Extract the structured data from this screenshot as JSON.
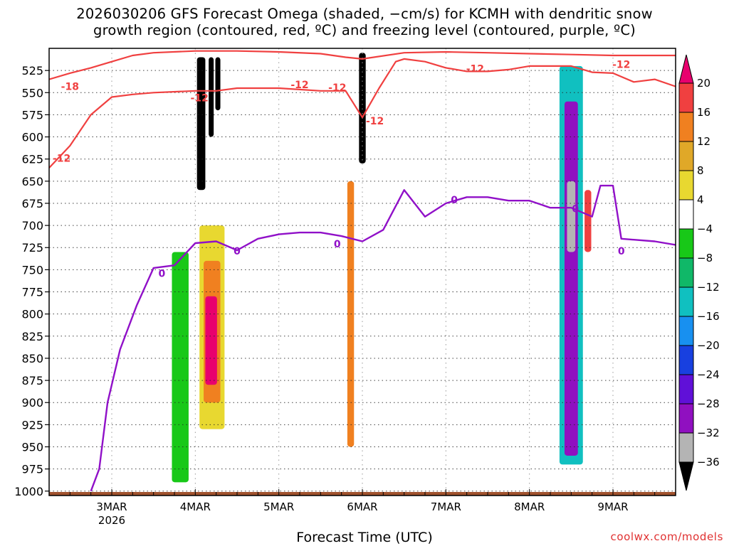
{
  "title_line1": "2026030206 GFS Forecast Omega (shaded, −cm/s) for KCMH with dendritic snow",
  "title_line2": "growth region (contoured, red, ºC) and freezing level (contoured, purple, ºC)",
  "credit": "coolwx.com/models",
  "colors": {
    "omega_pos_20": "#e8006e",
    "omega_16_20": "#f04040",
    "omega_12_16": "#f08020",
    "omega_8_12": "#e0a828",
    "omega_4_8": "#e8d830",
    "omega_neutral": "#ffffff",
    "omega_m8_m4": "#18c818",
    "omega_m12_m8": "#10b868",
    "omega_m16_m12": "#10c0c0",
    "omega_m20_m16": "#1890f0",
    "omega_m24_m20": "#1840e0",
    "omega_m28_m24": "#6010d8",
    "omega_m32_m28": "#9010c0",
    "omega_m36_m32": "#b4b4b4",
    "omega_below_m36": "#000000",
    "dgz_contour": "#f04040",
    "freezing_contour": "#9010c8",
    "terrain": "#a0522d"
  },
  "chart_data": {
    "type": "heatmap",
    "xlabel": "Forecast Time (UTC)",
    "ylabel": "",
    "x_ticks": [
      "3MAR",
      "4MAR",
      "5MAR",
      "6MAR",
      "7MAR",
      "8MAR",
      "9MAR"
    ],
    "x_tick_year": "2026",
    "x_range_days": [
      2.25,
      9.75
    ],
    "y_axis": "pressure (hPa), inverted",
    "y_ticks": [
      525,
      550,
      575,
      600,
      625,
      650,
      675,
      700,
      725,
      750,
      775,
      800,
      825,
      850,
      875,
      900,
      925,
      950,
      975,
      1000
    ],
    "y_range": [
      500,
      1005
    ],
    "grid": true,
    "colorbar": {
      "levels": [
        20,
        16,
        12,
        8,
        4,
        -4,
        -8,
        -12,
        -16,
        -20,
        -24,
        -28,
        -32,
        -36
      ]
    },
    "dgz_contour_label": "-12",
    "dgz_contour_labels": [
      "-18",
      "-12",
      "-12",
      "-12",
      "-12",
      "-12",
      "-12",
      "-12"
    ],
    "freezing_contour_label": "0",
    "freezing_contour_labels": [
      "0",
      "0",
      "0",
      "0",
      "0",
      "0"
    ],
    "dgz_upper": [
      [
        2.25,
        535
      ],
      [
        2.5,
        528
      ],
      [
        2.75,
        522
      ],
      [
        3.0,
        515
      ],
      [
        3.25,
        508
      ],
      [
        3.5,
        505
      ],
      [
        4.0,
        503
      ],
      [
        4.5,
        503
      ],
      [
        5.0,
        504
      ],
      [
        5.5,
        506
      ],
      [
        5.8,
        510
      ],
      [
        6.0,
        512
      ],
      [
        6.5,
        505
      ],
      [
        7.0,
        504
      ],
      [
        7.5,
        505
      ],
      [
        8.0,
        506
      ],
      [
        8.5,
        507
      ],
      [
        9.0,
        508
      ],
      [
        9.5,
        508
      ],
      [
        9.75,
        508
      ]
    ],
    "dgz_lower": [
      [
        2.25,
        635
      ],
      [
        2.5,
        610
      ],
      [
        2.75,
        575
      ],
      [
        3.0,
        555
      ],
      [
        3.25,
        552
      ],
      [
        3.5,
        550
      ],
      [
        4.0,
        548
      ],
      [
        4.25,
        548
      ],
      [
        4.5,
        545
      ],
      [
        5.0,
        545
      ],
      [
        5.5,
        548
      ],
      [
        5.8,
        548
      ],
      [
        6.0,
        578
      ],
      [
        6.2,
        545
      ],
      [
        6.4,
        515
      ],
      [
        6.5,
        512
      ],
      [
        6.75,
        515
      ],
      [
        7.0,
        522
      ],
      [
        7.25,
        526
      ],
      [
        7.5,
        526
      ],
      [
        7.75,
        524
      ],
      [
        8.0,
        520
      ],
      [
        8.25,
        520
      ],
      [
        8.5,
        520
      ],
      [
        8.75,
        527
      ],
      [
        9.0,
        528
      ],
      [
        9.25,
        538
      ],
      [
        9.5,
        535
      ],
      [
        9.75,
        543
      ]
    ],
    "freezing_level": [
      [
        2.75,
        1000
      ],
      [
        2.85,
        975
      ],
      [
        2.95,
        900
      ],
      [
        3.1,
        840
      ],
      [
        3.3,
        790
      ],
      [
        3.5,
        748
      ],
      [
        3.75,
        745
      ],
      [
        4.0,
        720
      ],
      [
        4.25,
        718
      ],
      [
        4.5,
        728
      ],
      [
        4.75,
        715
      ],
      [
        5.0,
        710
      ],
      [
        5.25,
        708
      ],
      [
        5.5,
        708
      ],
      [
        5.75,
        712
      ],
      [
        6.0,
        718
      ],
      [
        6.25,
        705
      ],
      [
        6.5,
        660
      ],
      [
        6.75,
        690
      ],
      [
        7.0,
        675
      ],
      [
        7.25,
        668
      ],
      [
        7.5,
        668
      ],
      [
        7.75,
        672
      ],
      [
        8.0,
        672
      ],
      [
        8.25,
        680
      ],
      [
        8.5,
        680
      ],
      [
        8.75,
        690
      ],
      [
        8.85,
        655
      ],
      [
        9.0,
        655
      ],
      [
        9.1,
        715
      ],
      [
        9.5,
        718
      ],
      [
        9.75,
        722
      ]
    ],
    "omega_features": [
      {
        "x_from": 4.02,
        "x_to": 4.12,
        "p_from": 510,
        "p_to": 660,
        "value": -40
      },
      {
        "x_from": 4.16,
        "x_to": 4.22,
        "p_from": 510,
        "p_to": 600,
        "value": -40
      },
      {
        "x_from": 4.24,
        "x_to": 4.3,
        "p_from": 510,
        "p_to": 570,
        "value": -40
      },
      {
        "x_from": 5.96,
        "x_to": 6.04,
        "p_from": 505,
        "p_to": 630,
        "value": -40
      },
      {
        "x_from": 4.12,
        "x_to": 4.26,
        "p_from": 780,
        "p_to": 880,
        "value": 22
      },
      {
        "x_from": 4.1,
        "x_to": 4.3,
        "p_from": 740,
        "p_to": 900,
        "value": 14
      },
      {
        "x_from": 4.05,
        "x_to": 4.35,
        "p_from": 700,
        "p_to": 930,
        "value": 6
      },
      {
        "x_from": 8.45,
        "x_to": 8.55,
        "p_from": 650,
        "p_to": 730,
        "value": -34
      },
      {
        "x_from": 8.42,
        "x_to": 8.58,
        "p_from": 560,
        "p_to": 960,
        "value": -30
      },
      {
        "x_from": 8.36,
        "x_to": 8.64,
        "p_from": 520,
        "p_to": 970,
        "value": -14
      },
      {
        "x_from": 8.66,
        "x_to": 8.74,
        "p_from": 660,
        "p_to": 730,
        "value": 18
      },
      {
        "x_from": 5.82,
        "x_to": 5.9,
        "p_from": 650,
        "p_to": 950,
        "value": 14
      },
      {
        "x_from": 3.72,
        "x_to": 3.92,
        "p_from": 730,
        "p_to": 990,
        "value": -6
      }
    ]
  }
}
